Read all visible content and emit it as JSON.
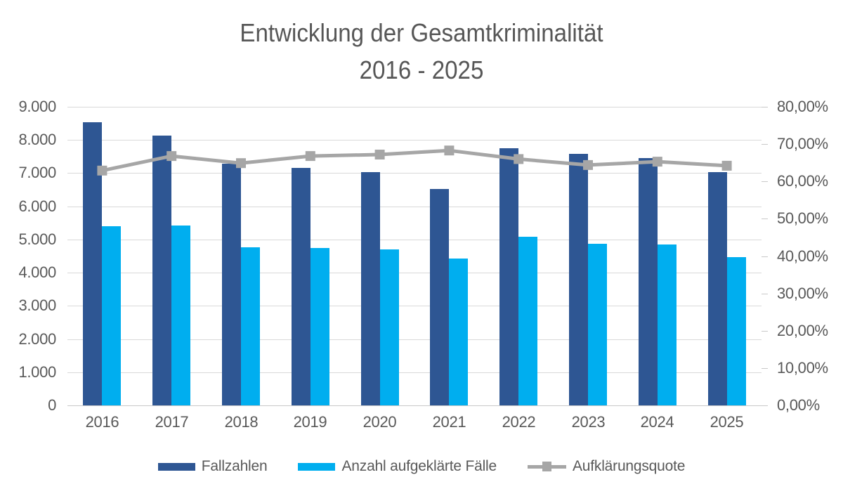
{
  "title": {
    "line1": "Entwicklung der Gesamtkriminalität",
    "line2": "2016 - 2025"
  },
  "chart_data": {
    "type": "combo-bar-line",
    "title": "Entwicklung der Gesamtkriminalität 2016 - 2025",
    "categories": [
      "2016",
      "2017",
      "2018",
      "2019",
      "2020",
      "2021",
      "2022",
      "2023",
      "2024",
      "2025"
    ],
    "series": [
      {
        "name": "Fallzahlen",
        "type": "bar",
        "axis": "primary",
        "color": "#2e5693",
        "values": [
          8540,
          8140,
          7290,
          7150,
          7030,
          6520,
          7740,
          7580,
          7460,
          7020
        ]
      },
      {
        "name": "Anzahl aufgeklärte Fälle",
        "type": "bar",
        "axis": "primary",
        "color": "#00aeef",
        "values": [
          5390,
          5420,
          4760,
          4750,
          4700,
          4430,
          5080,
          4860,
          4840,
          4470
        ]
      },
      {
        "name": "Aufklärungsquote",
        "type": "line",
        "axis": "secondary",
        "color": "#a6a6a6",
        "marker": "square",
        "unit": "%",
        "values": [
          62.9,
          66.8,
          64.9,
          66.8,
          67.2,
          68.3,
          66.0,
          64.4,
          65.3,
          64.2
        ]
      }
    ],
    "left_axis": {
      "min": 0,
      "max": 9000,
      "step": 1000,
      "tick_labels": [
        "9.000",
        "8.000",
        "7.000",
        "6.000",
        "5.000",
        "4.000",
        "3.000",
        "2.000",
        "1.000",
        "0"
      ]
    },
    "right_axis": {
      "min": 0,
      "max": 80,
      "step": 10,
      "tick_labels": [
        "80,00%",
        "70,00%",
        "60,00%",
        "50,00%",
        "40,00%",
        "30,00%",
        "20,00%",
        "10,00%",
        "0,00%"
      ]
    },
    "grid": true,
    "legend_position": "bottom"
  }
}
